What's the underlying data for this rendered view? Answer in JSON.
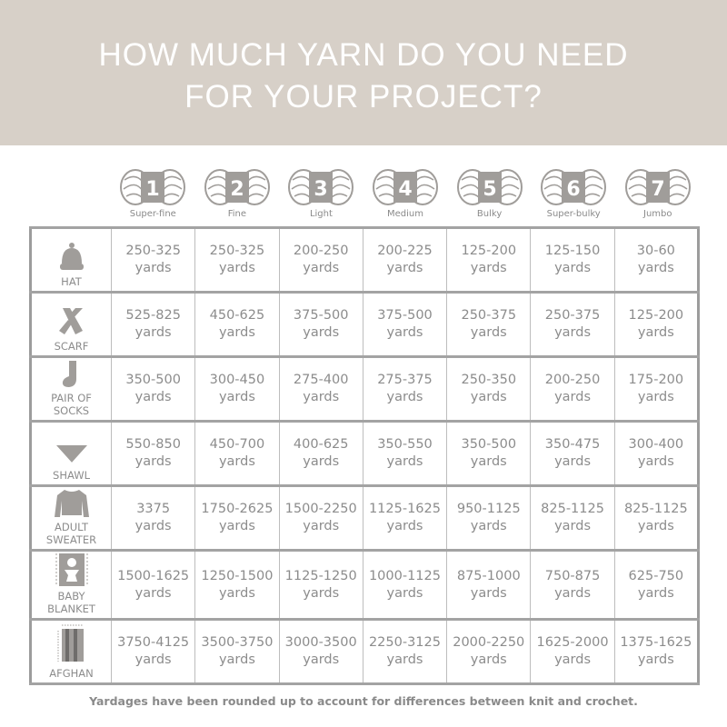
{
  "title_line1": "HOW MUCH YARN DO YOU NEED",
  "title_line2": "FOR YOUR PROJECT?",
  "colors": {
    "banner": "#d7d0c8",
    "text": "#8a8a8a",
    "icon": "#a09d9a"
  },
  "weights": [
    {
      "number": "1",
      "label": "Super-fine"
    },
    {
      "number": "2",
      "label": "Fine"
    },
    {
      "number": "3",
      "label": "Light"
    },
    {
      "number": "4",
      "label": "Medium"
    },
    {
      "number": "5",
      "label": "Bulky"
    },
    {
      "number": "6",
      "label": "Super-bulky"
    },
    {
      "number": "7",
      "label": "Jumbo"
    }
  ],
  "unit": "yards",
  "rows": [
    {
      "project": "HAT",
      "icon": "hat-icon",
      "values": [
        "250-325",
        "250-325",
        "200-250",
        "200-225",
        "125-200",
        "125-150",
        "30-60"
      ]
    },
    {
      "project": "SCARF",
      "icon": "scarf-icon",
      "values": [
        "525-825",
        "450-625",
        "375-500",
        "375-500",
        "250-375",
        "250-375",
        "125-200"
      ]
    },
    {
      "project": "PAIR OF SOCKS",
      "icon": "sock-icon",
      "values": [
        "350-500",
        "300-450",
        "275-400",
        "275-375",
        "250-350",
        "200-250",
        "175-200"
      ]
    },
    {
      "project": "SHAWL",
      "icon": "shawl-icon",
      "values": [
        "550-850",
        "450-700",
        "400-625",
        "350-550",
        "350-500",
        "350-475",
        "300-400"
      ]
    },
    {
      "project": "ADULT SWEATER",
      "icon": "sweater-icon",
      "values": [
        "3375",
        "1750-2625",
        "1500-2250",
        "1125-1625",
        "950-1125",
        "825-1125",
        "825-1125"
      ]
    },
    {
      "project": "BABY BLANKET",
      "icon": "baby-blanket-icon",
      "values": [
        "1500-1625",
        "1250-1500",
        "1125-1250",
        "1000-1125",
        "875-1000",
        "750-875",
        "625-750"
      ]
    },
    {
      "project": "AFGHAN",
      "icon": "afghan-icon",
      "values": [
        "3750-4125",
        "3500-3750",
        "3000-3500",
        "2250-3125",
        "2000-2250",
        "1625-2000",
        "1375-1625"
      ]
    }
  ],
  "footer": "Yardages have been rounded up to account for differences between knit and crochet."
}
